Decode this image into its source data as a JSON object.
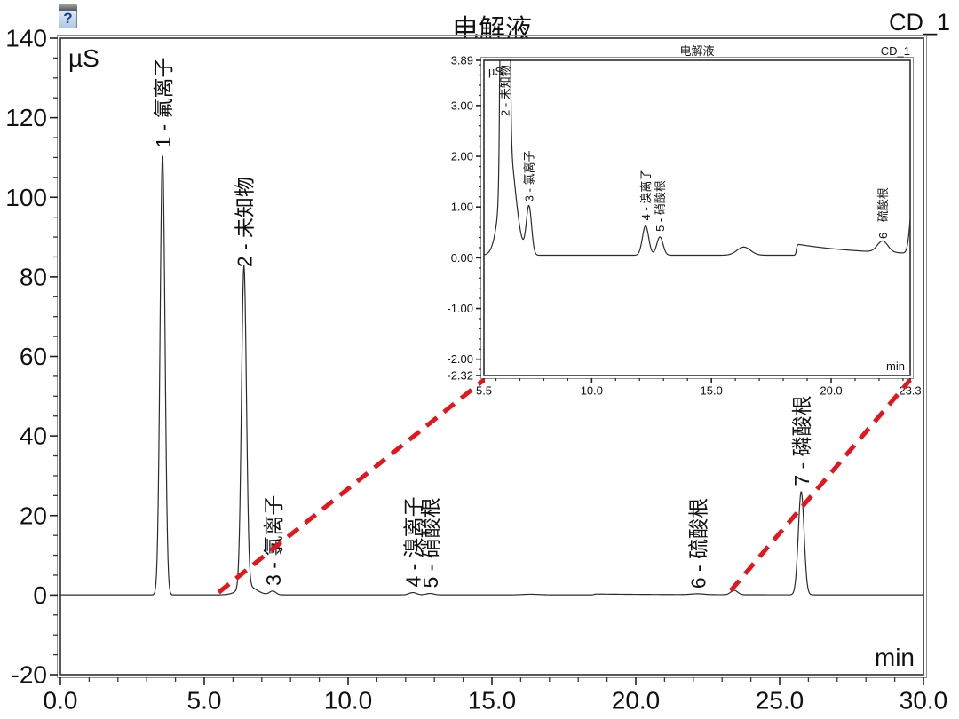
{
  "header": {
    "title": "电解液",
    "channel": "CD_1",
    "sample_icon": "vial-question-icon"
  },
  "chart_data": [
    {
      "id": "main",
      "type": "line",
      "title": "电解液",
      "channel_label": "CD_1",
      "ylabel": "µS",
      "xlabel": "min",
      "xlim": [
        0,
        30
      ],
      "ylim": [
        -20,
        140
      ],
      "grid": false,
      "xticks": {
        "major": [
          0,
          5,
          10,
          15,
          20,
          25,
          30
        ],
        "labels": [
          "0.0",
          "5.0",
          "10.0",
          "15.0",
          "20.0",
          "25.0",
          "30.0"
        ],
        "minor_step": 1
      },
      "yticks": {
        "major": [
          -20,
          0,
          20,
          40,
          60,
          80,
          100,
          120,
          140
        ],
        "labels": [
          "-20",
          "0",
          "20",
          "40",
          "60",
          "80",
          "100",
          "120",
          "140"
        ],
        "minor_step": 5
      },
      "baseline_uS": 0.05,
      "peaks": [
        {
          "num": 1,
          "name": "氟离子",
          "label": "1 - 氟离子",
          "rt_min": 3.55,
          "height_uS": 111,
          "sigma_min": 0.085
        },
        {
          "num": 2,
          "name": "未知物",
          "label": "2 - 未知物",
          "rt_min": 6.38,
          "height_uS": 81,
          "sigma_min": 0.085
        },
        {
          "num": 3,
          "name": "氯离子",
          "label": "3 - 氯离子",
          "rt_min": 7.38,
          "height_uS": 0.95,
          "sigma_min": 0.11
        },
        {
          "num": 4,
          "name": "溴离子",
          "label": "4 - 溴离子",
          "rt_min": 12.25,
          "height_uS": 0.58,
          "sigma_min": 0.13
        },
        {
          "num": 5,
          "name": "硝酸根",
          "label": "5 - 硝酸根",
          "rt_min": 12.85,
          "height_uS": 0.36,
          "sigma_min": 0.13
        },
        {
          "num": 6,
          "name": "硫酸根",
          "label": "6 - 硫酸根",
          "rt_min": 22.15,
          "height_uS": 0.22,
          "sigma_min": 0.22
        },
        {
          "num": 7,
          "name": "磷酸根",
          "label": "7 - 磷酸根",
          "rt_min": 25.75,
          "height_uS": 26,
          "sigma_min": 0.1
        }
      ],
      "baseline_features": [
        {
          "type": "hump",
          "rt_min": 6.5,
          "height_uS": 2.2,
          "sigma_min": 0.3
        },
        {
          "type": "hump",
          "rt_min": 16.35,
          "height_uS": 0.16,
          "sigma_min": 0.28
        },
        {
          "type": "step_decay",
          "rt_min": 18.55,
          "height_uS": 0.22,
          "tau_min": 2.8
        },
        {
          "type": "hump",
          "rt_min": 23.42,
          "height_uS": 1.1,
          "sigma_min": 0.12
        }
      ],
      "labeled_peaks": [
        1,
        2,
        3,
        4,
        5,
        6,
        7
      ],
      "zoom_region_min": [
        5.5,
        23.3
      ],
      "zoom_link_color": "#e4151b"
    },
    {
      "id": "inset",
      "type": "line",
      "title": "电解液",
      "channel_label": "CD_1",
      "ylabel": "µS",
      "xlabel": "min",
      "xlim": [
        5.5,
        23.3
      ],
      "ylim": [
        -2.32,
        3.89
      ],
      "grid": false,
      "xticks": {
        "major": [
          5.5,
          10,
          15,
          20,
          23.3
        ],
        "labels": [
          "5.5",
          "10.0",
          "15.0",
          "20.0",
          "23.3"
        ],
        "minor_step": 1
      },
      "yticks": {
        "major": [
          3.89,
          3.0,
          2.0,
          1.0,
          0.0,
          -1.0,
          -2.0,
          -2.32
        ],
        "labels": [
          "3.89",
          "3.00",
          "2.00",
          "1.00",
          "0.00",
          "-1.00",
          "-2.00",
          "-2.32"
        ],
        "minor_step": 0.2
      },
      "peaks_ref": "main",
      "labeled_peaks": [
        2,
        3,
        4,
        5,
        6
      ],
      "note": "zoomed view of main chromatogram between 5.5 and 23.3 min; peak 2 clipped at top"
    }
  ]
}
